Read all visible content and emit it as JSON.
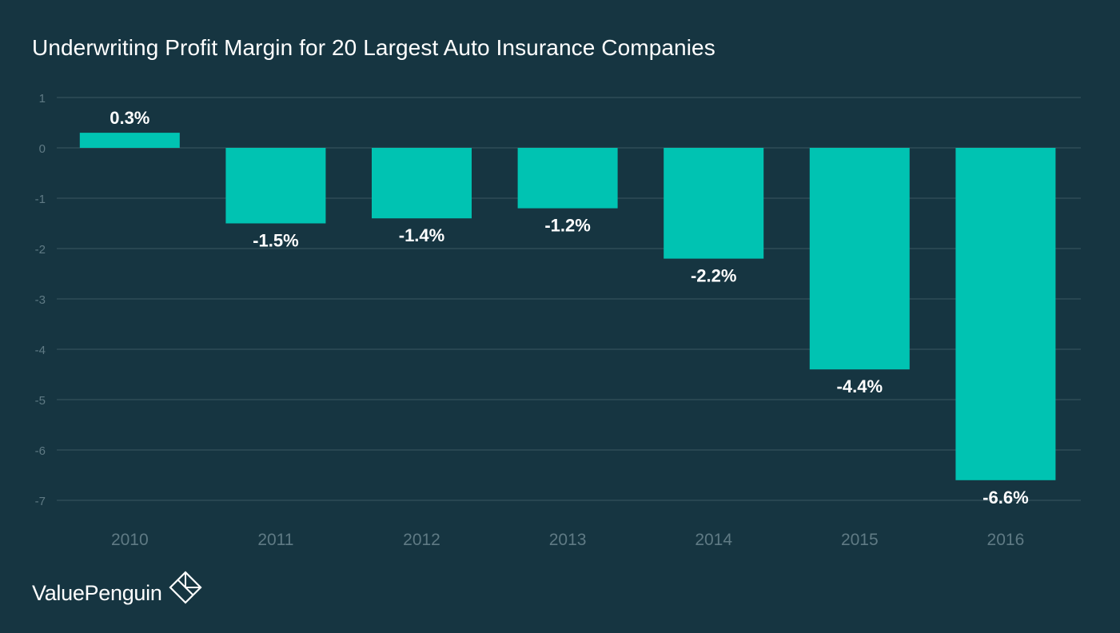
{
  "colors": {
    "background": "#163541",
    "bar": "#00c3b2",
    "gridline": "#3a5661",
    "tick_label": "#5f7a84",
    "text": "#ffffff"
  },
  "brand": {
    "name": "ValuePenguin",
    "icon": "valuepenguin-diamond-logo-icon"
  },
  "chart_data": {
    "type": "bar",
    "title": "Underwriting Profit Margin for 20 Largest Auto Insurance Companies",
    "xlabel": "",
    "ylabel": "",
    "categories": [
      "2010",
      "2011",
      "2012",
      "2013",
      "2014",
      "2015",
      "2016"
    ],
    "values": [
      0.3,
      -1.5,
      -1.4,
      -1.2,
      -2.2,
      -4.4,
      -6.6
    ],
    "data_labels": [
      "0.3%",
      "-1.5%",
      "-1.4%",
      "-1.2%",
      "-2.2%",
      "-4.4%",
      "-6.6%"
    ],
    "yticks": [
      1,
      0,
      -1,
      -2,
      -3,
      -4,
      -5,
      -6,
      -7
    ],
    "ylim": [
      -7,
      1
    ],
    "grid": true,
    "legend": "none"
  }
}
